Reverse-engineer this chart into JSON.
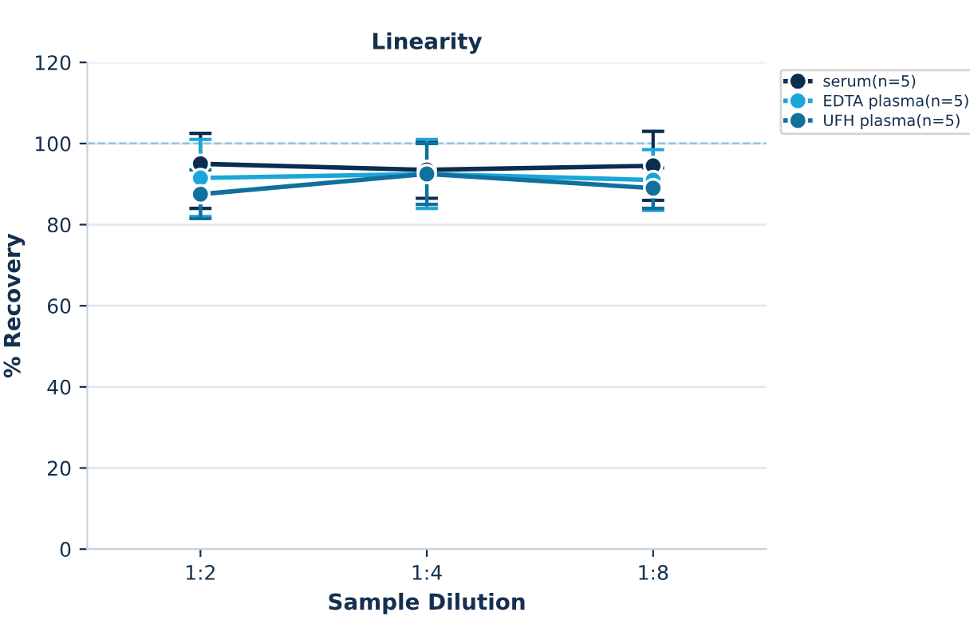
{
  "chart_data": {
    "type": "line",
    "title": "Linearity",
    "xlabel": "Sample Dilution",
    "ylabel": "% Recovery",
    "categories": [
      "1:2",
      "1:4",
      "1:8"
    ],
    "series": [
      {
        "name": "serum(n=5)",
        "color": "#0b2d4f",
        "values": [
          95,
          93.5,
          94.5
        ],
        "errors": [
          [
            84,
            102.5
          ],
          7,
          8.5
        ]
      },
      {
        "name": "EDTA plasma(n=5)",
        "color": "#1ba6d8",
        "values": [
          91.5,
          92.5,
          91
        ],
        "errors": [
          9.5,
          8.5,
          7.5
        ]
      },
      {
        "name": "UFH plasma(n=5)",
        "color": "#11709c",
        "values": [
          87.5,
          92.5,
          89
        ],
        "errors": [
          6,
          7.5,
          5
        ]
      }
    ],
    "ylim": [
      0,
      120
    ],
    "yticks": [
      0,
      20,
      40,
      60,
      80,
      100,
      120
    ],
    "ref_lines": [
      {
        "axis": "y",
        "value": 100,
        "color": "#8ec5dc",
        "line_style": "dashed"
      }
    ],
    "grid": "y",
    "legend": "top right",
    "marker": "circle",
    "line_style": "solid"
  }
}
